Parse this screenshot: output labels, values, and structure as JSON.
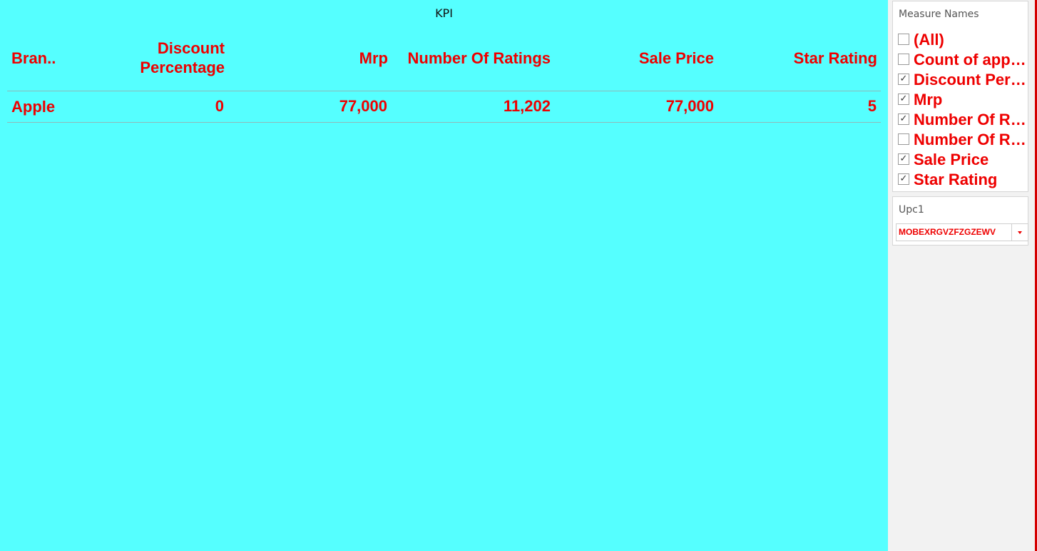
{
  "main": {
    "title": "KPI",
    "headers": {
      "brand": "Bran..",
      "discount_line1": "Discount",
      "discount_line2": "Percentage",
      "mrp": "Mrp",
      "ratings": "Number Of Ratings",
      "sale_price": "Sale Price",
      "star_rating": "Star Rating"
    },
    "rows": [
      {
        "brand": "Apple",
        "discount": "0",
        "mrp": "77,000",
        "ratings": "11,202",
        "sale_price": "77,000",
        "star_rating": "5"
      }
    ]
  },
  "filters": {
    "measure_names": {
      "title": "Measure Names",
      "options": [
        {
          "label": "(All)",
          "checked": false,
          "mark": ""
        },
        {
          "label": "Count of apple_products.csv",
          "checked": false,
          "mark": ""
        },
        {
          "label": "Discount Percentage",
          "checked": true,
          "mark": "✓"
        },
        {
          "label": "Mrp",
          "checked": true,
          "mark": "✓"
        },
        {
          "label": "Number Of Ratings",
          "checked": true,
          "mark": "✓"
        },
        {
          "label": "Number Of Reviews",
          "checked": false,
          "mark": ""
        },
        {
          "label": "Sale Price",
          "checked": true,
          "mark": "✓"
        },
        {
          "label": "Star Rating",
          "checked": true,
          "mark": "✓"
        }
      ]
    },
    "upc": {
      "title": "Upc1",
      "value": "MOBEXRGVZFZGZEWV",
      "arrow_icon": "dropdown-arrow-icon"
    }
  },
  "colors": {
    "background": "#55ffff",
    "text_accent": "#ee0000",
    "panel": "#f2f2f2"
  }
}
